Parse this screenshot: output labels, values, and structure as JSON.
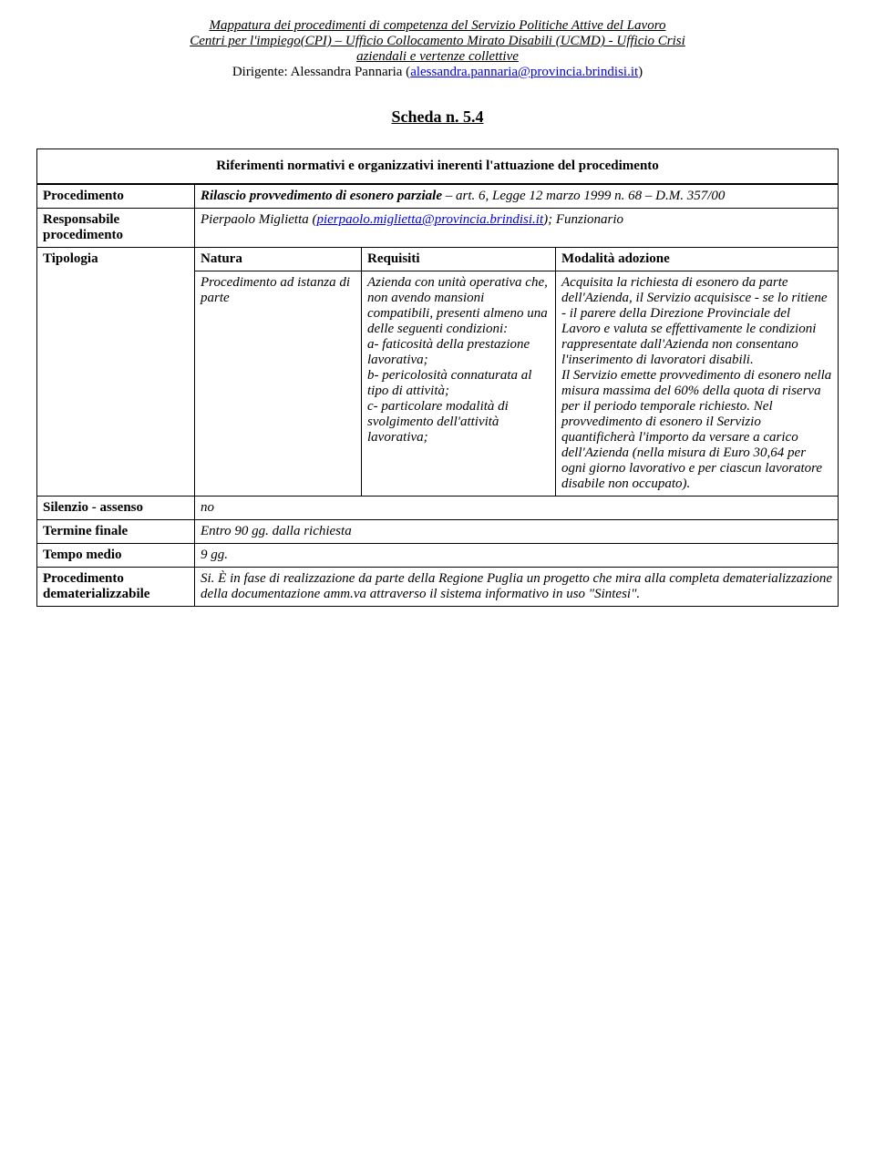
{
  "header": {
    "line1": "Mappatura dei procedimenti di competenza del Servizio Politiche Attive del Lavoro",
    "line2": "Centri per l'impiego(CPI) – Ufficio Collocamento Mirato Disabili (UCMD) - Ufficio Crisi",
    "line3": "aziendali e vertenze collettive",
    "line4_prefix": "Dirigente: Alessandra Pannaria (",
    "line4_link": "alessandra.pannaria@provincia.brindisi.it",
    "line4_suffix": ")"
  },
  "scheda": "Scheda n. 5.4",
  "ref_box": "Riferimenti normativi e organizzativi inerenti l'attuazione del procedimento",
  "rows": {
    "procedimento": {
      "label": "Procedimento",
      "value_bold": "Rilascio provvedimento di esonero parziale",
      "value_rest": "  – art. 6, Legge 12 marzo 1999 n. 68 – D.M. 357/00"
    },
    "responsabile": {
      "label": "Responsabile procedimento",
      "value_prefix": "Pierpaolo Miglietta (",
      "value_link": "pierpaolo.miglietta@provincia.brindisi.it",
      "value_suffix": "); Funzionario"
    },
    "tipologia": {
      "label": "Tipologia",
      "h1": "Natura",
      "h2": "Requisiti",
      "h3": "Modalità adozione",
      "natura": "Procedimento ad istanza di parte",
      "requisiti": "Azienda con unità operativa che, non avendo mansioni compatibili, presenti almeno una delle seguenti condizioni:\na-        faticosità della prestazione lavorativa;\nb-        pericolosità connaturata al tipo di attività;\nc-        particolare modalità di svolgimento dell'attività lavorativa;",
      "modalita": "Acquisita la richiesta di esonero da parte dell'Azienda, il Servizio acquisisce - se lo ritiene -  il parere della Direzione Provinciale del Lavoro e valuta se effettivamente le condizioni rappresentate dall'Azienda non consentano l'inserimento di lavoratori disabili.\nIl Servizio emette provvedimento di esonero nella misura massima del 60% della quota di riserva per il periodo temporale richiesto. Nel provvedimento di esonero il Servizio quantificherà l'importo da versare a carico dell'Azienda (nella misura di Euro 30,64 per ogni giorno lavorativo e per ciascun lavoratore disabile non occupato)."
    },
    "silenzio": {
      "label": "Silenzio - assenso",
      "value": "no"
    },
    "termine": {
      "label": "Termine finale",
      "value": "Entro 90 gg. dalla richiesta"
    },
    "tempo": {
      "label": "Tempo medio",
      "value": "9 gg."
    },
    "demat": {
      "label": "Procedimento dematerializzabile",
      "value": "Si. È in fase di realizzazione da parte della Regione Puglia un progetto che mira alla completa dematerializzazione della documentazione amm.va attraverso il sistema informativo in uso \"Sintesi\"."
    }
  },
  "widths": {
    "natura": "170px",
    "requisiti": "200px"
  }
}
